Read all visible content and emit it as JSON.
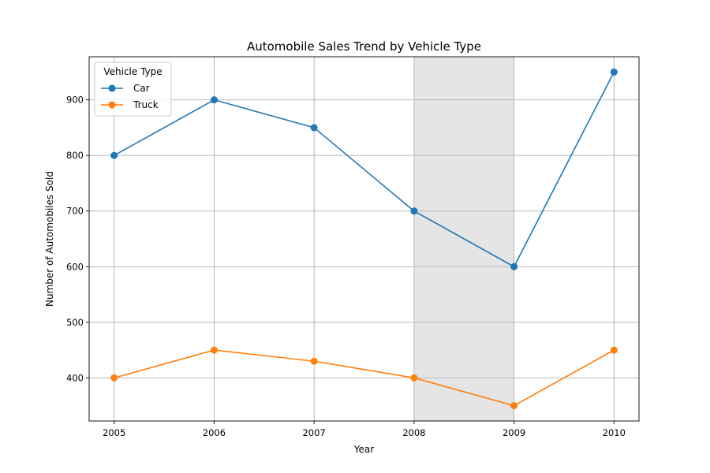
{
  "chart_data": {
    "type": "line",
    "title": "Automobile Sales Trend by Vehicle Type",
    "xlabel": "Year",
    "ylabel": "Number of Automobiles Sold",
    "x": [
      2005,
      2006,
      2007,
      2008,
      2009,
      2010
    ],
    "xlim": [
      2004.75,
      2010.25
    ],
    "ylim": [
      322.5,
      977.5
    ],
    "yticks": [
      400,
      500,
      600,
      700,
      800,
      900
    ],
    "grid": true,
    "shaded_region": [
      2008,
      2009
    ],
    "legend": {
      "title": "Vehicle Type",
      "position": "top-left"
    },
    "series": [
      {
        "name": "Car",
        "color": "#1f77b4",
        "values": [
          800,
          900,
          850,
          700,
          600,
          950
        ]
      },
      {
        "name": "Truck",
        "color": "#ff7f0e",
        "values": [
          400,
          450,
          430,
          400,
          350,
          450
        ]
      }
    ]
  }
}
